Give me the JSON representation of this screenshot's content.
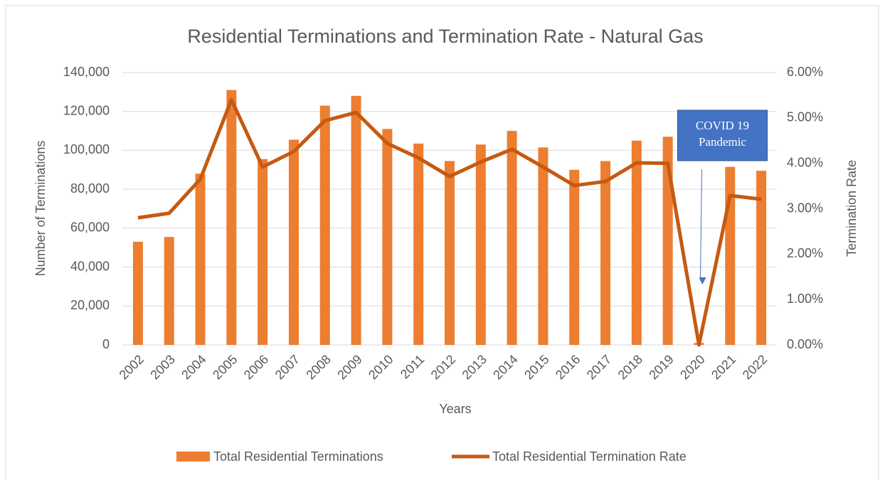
{
  "chart_data": {
    "type": "bar-line",
    "title": "Residential Terminations and Termination Rate - Natural Gas",
    "xlabel": "Years",
    "ylabel": "Number of Terminations",
    "y2label": "Termination Rate",
    "categories": [
      "2002",
      "2003",
      "2004",
      "2005",
      "2006",
      "2007",
      "2008",
      "2009",
      "2010",
      "2011",
      "2012",
      "2013",
      "2014",
      "2015",
      "2016",
      "2017",
      "2018",
      "2019",
      "2020",
      "2021",
      "2022"
    ],
    "series": [
      {
        "name": "Total Residential Terminations",
        "type": "bar",
        "color": "#ed7d31",
        "values": [
          53000,
          55500,
          88000,
          131000,
          95500,
          105500,
          123000,
          128000,
          111000,
          103500,
          94500,
          103000,
          110000,
          101500,
          90000,
          94500,
          105000,
          107000,
          1000,
          91500,
          89500
        ]
      },
      {
        "name": "Total Residential Termination Rate",
        "type": "line",
        "axis": "y2",
        "color": "#c55a11",
        "values": [
          2.8,
          2.9,
          3.65,
          5.4,
          3.92,
          4.26,
          4.94,
          5.12,
          4.44,
          4.12,
          3.71,
          4.03,
          4.31,
          3.92,
          3.51,
          3.6,
          4.01,
          4.0,
          0.0,
          3.29,
          3.21
        ]
      }
    ],
    "ylim": [
      0,
      140000
    ],
    "yticks": [
      0,
      {
        "value": 20000,
        "label": "20,000"
      },
      {
        "value": 40000,
        "label": "40,000"
      },
      {
        "value": 60000,
        "label": "60,000"
      },
      {
        "value": 80000,
        "label": "80,000"
      },
      {
        "value": 100000,
        "label": "100,000"
      },
      {
        "value": 120000,
        "label": "120,000"
      },
      {
        "value": 140000,
        "label": "140,000"
      }
    ],
    "y2lim": [
      0,
      6
    ],
    "y2ticks": [
      {
        "value": 0,
        "label": "0.00%"
      },
      {
        "value": 1,
        "label": "1.00%"
      },
      {
        "value": 2,
        "label": "2.00%"
      },
      {
        "value": 3,
        "label": "3.00%"
      },
      {
        "value": 4,
        "label": "4.00%"
      },
      {
        "value": 5,
        "label": "5.00%"
      },
      {
        "value": 6,
        "label": "6.00%"
      }
    ],
    "grid": true,
    "legend": "bottom",
    "annotation": {
      "text": [
        "COVID 19",
        "Pandemic"
      ],
      "category": "2020"
    }
  }
}
